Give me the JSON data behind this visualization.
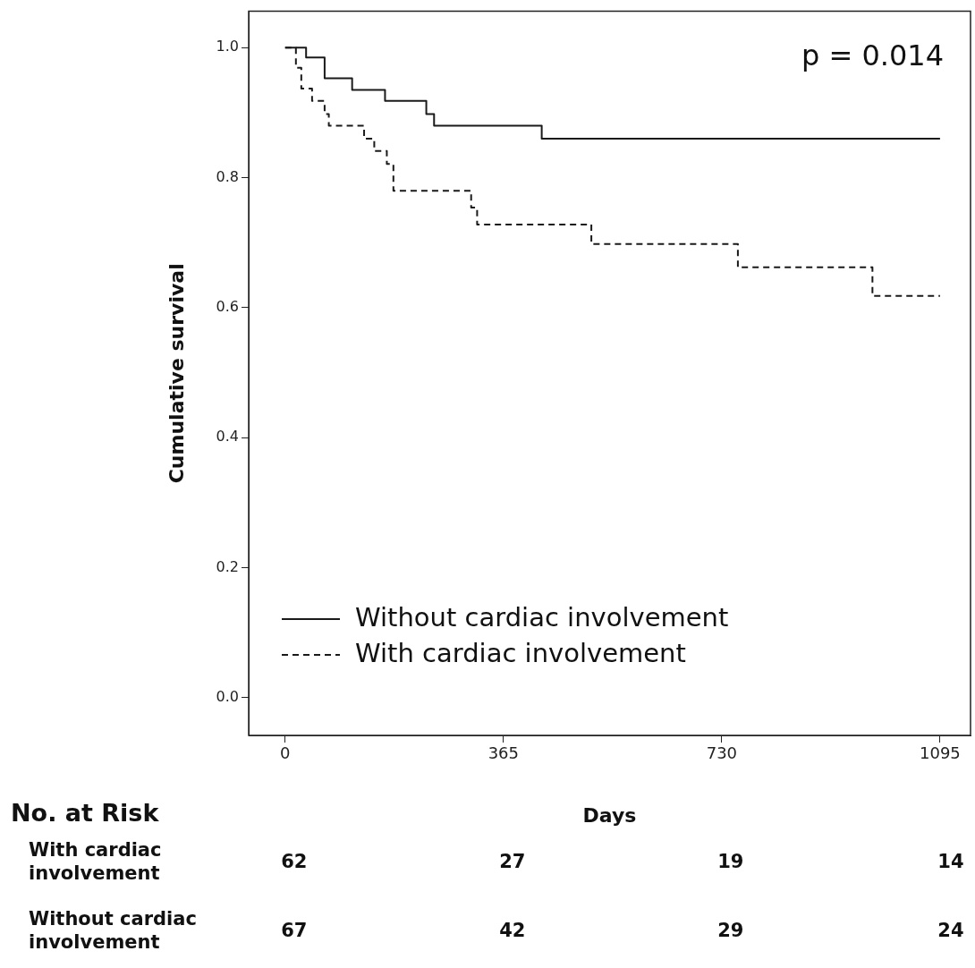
{
  "chart_data": {
    "type": "step",
    "xlabel": "Days",
    "ylabel": "Cumulative survival",
    "xlim": [
      -61,
      1146
    ],
    "ylim": [
      -0.058,
      1.056
    ],
    "xticks": [
      0,
      365,
      730,
      1095
    ],
    "yticks": [
      {
        "value": 0,
        "label": "0.0"
      },
      {
        "value": 0.2,
        "label": "0.2"
      },
      {
        "value": 0.4,
        "label": "0.4"
      },
      {
        "value": 0.6,
        "label": "0.6"
      },
      {
        "value": 0.8,
        "label": "0.8"
      },
      {
        "value": 1,
        "label": "1.0"
      }
    ],
    "grid": false,
    "legend": "bottom left",
    "series": [
      {
        "name": "Without cardiac involvement",
        "color": "#1a1a1a",
        "line_style": "solid",
        "x": [
          0,
          35,
          66,
          112,
          167,
          236,
          249,
          429,
          1095
        ],
        "values": [
          1.0,
          0.985,
          0.953,
          0.935,
          0.918,
          0.898,
          0.88,
          0.86,
          0.86
        ]
      },
      {
        "name": "With cardiac involvement",
        "color": "#1a1a1a",
        "line_style": "dashed",
        "x": [
          0,
          18,
          27,
          45,
          66,
          73,
          132,
          149,
          170,
          181,
          311,
          321,
          512,
          757,
          982,
          1095
        ],
        "values": [
          1.0,
          0.969,
          0.937,
          0.918,
          0.898,
          0.88,
          0.86,
          0.841,
          0.821,
          0.78,
          0.754,
          0.728,
          0.698,
          0.662,
          0.618,
          0.618
        ]
      }
    ],
    "annotations": [
      "p = 0.014",
      "No. at Risk",
      "With cardiac involvement",
      "62",
      "27",
      "19",
      "14",
      "Without cardiac involvement",
      "67",
      "42",
      "29",
      "24"
    ]
  }
}
